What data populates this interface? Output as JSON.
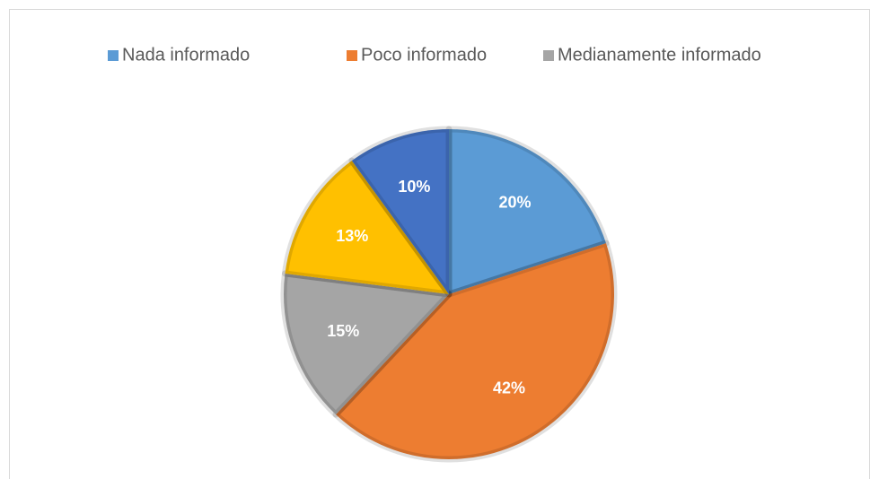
{
  "chart_data": {
    "type": "pie",
    "categories": [
      "Nada informado",
      "Poco informado",
      "Medianamente informado",
      null,
      null
    ],
    "values": [
      20,
      42,
      15,
      13,
      10
    ],
    "value_labels": [
      "20%",
      "42%",
      "15%",
      "13%",
      "10%"
    ],
    "colors": [
      "#5b9bd5",
      "#ed7d31",
      "#a5a5a5",
      "#ffc000",
      "#4472c4"
    ],
    "legend": "top"
  }
}
